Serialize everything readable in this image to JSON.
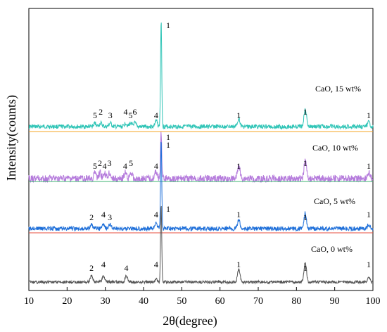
{
  "chart_data": {
    "type": "line",
    "xlabel": "2θ(degree)",
    "ylabel": "Intensity(counts)",
    "xlim": [
      10,
      100
    ],
    "x_ticks": [
      10,
      20,
      30,
      40,
      50,
      60,
      70,
      80,
      90,
      100
    ],
    "y_ticks_shown": false,
    "grid": false,
    "stacked_offset_pattern": true,
    "series": [
      {
        "name": "CaO, 15 wt%",
        "color": "#2ec4b6",
        "baseline_color": "#f5a623",
        "peaks": [
          {
            "x": 27.3,
            "label": "5"
          },
          {
            "x": 28.8,
            "label": "2"
          },
          {
            "x": 31.3,
            "label": "3"
          },
          {
            "x": 35.3,
            "label": "4"
          },
          {
            "x": 36.6,
            "label": "5"
          },
          {
            "x": 37.7,
            "label": "6"
          },
          {
            "x": 43.3,
            "label": "4"
          },
          {
            "x": 44.6,
            "label": "1"
          },
          {
            "x": 64.9,
            "label": "1"
          },
          {
            "x": 82.3,
            "label": "1"
          },
          {
            "x": 98.9,
            "label": "1"
          }
        ]
      },
      {
        "name": "CaO, 10 wt%",
        "color": "#b57bdc",
        "baseline_color": "#3cb371",
        "peaks": [
          {
            "x": 27.3,
            "label": "5"
          },
          {
            "x": 28.6,
            "label": "2"
          },
          {
            "x": 29.8,
            "label": "4"
          },
          {
            "x": 31.1,
            "label": "3"
          },
          {
            "x": 35.2,
            "label": "4"
          },
          {
            "x": 36.7,
            "label": "5"
          },
          {
            "x": 43.3,
            "label": "4"
          },
          {
            "x": 44.6,
            "label": "1"
          },
          {
            "x": 64.9,
            "label": "1"
          },
          {
            "x": 82.3,
            "label": "1"
          },
          {
            "x": 98.9,
            "label": "1"
          }
        ]
      },
      {
        "name": "CaO, 5 wt%",
        "color": "#1e6fd9",
        "baseline_color": "#e74c3c",
        "peaks": [
          {
            "x": 26.4,
            "label": "2"
          },
          {
            "x": 29.5,
            "label": "4"
          },
          {
            "x": 31.2,
            "label": "3"
          },
          {
            "x": 43.3,
            "label": "4"
          },
          {
            "x": 44.6,
            "label": "1"
          },
          {
            "x": 64.9,
            "label": "1"
          },
          {
            "x": 82.3,
            "label": "1"
          },
          {
            "x": 98.9,
            "label": "1"
          }
        ]
      },
      {
        "name": "CaO, 0 wt%",
        "color": "#555555",
        "peaks": [
          {
            "x": 26.4,
            "label": "2"
          },
          {
            "x": 29.5,
            "label": "4"
          },
          {
            "x": 35.5,
            "label": "4"
          },
          {
            "x": 43.3,
            "label": "4"
          },
          {
            "x": 44.6,
            "label": "1"
          },
          {
            "x": 64.9,
            "label": "1"
          },
          {
            "x": 82.3,
            "label": "1"
          },
          {
            "x": 98.9,
            "label": "1"
          }
        ]
      }
    ]
  }
}
